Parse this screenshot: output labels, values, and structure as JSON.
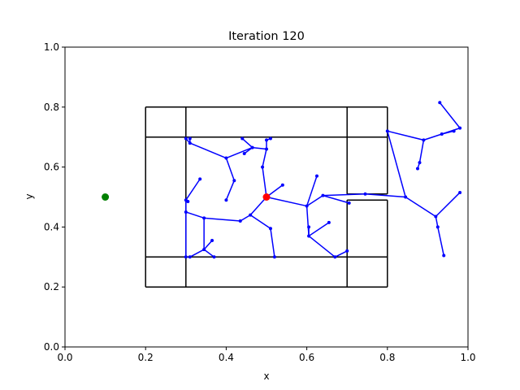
{
  "chart_data": {
    "type": "scatter",
    "title": "Iteration 120",
    "xlabel": "x",
    "ylabel": "y",
    "xlim": [
      0,
      1
    ],
    "ylim": [
      0,
      1
    ],
    "xticks": [
      "0.0",
      "0.2",
      "0.4",
      "0.6",
      "0.8",
      "1.0"
    ],
    "yticks": [
      "0.0",
      "0.2",
      "0.4",
      "0.6",
      "0.8",
      "1.0"
    ],
    "grid": false,
    "colors": {
      "tree": "#0000ff",
      "walls": "#000000",
      "start": "#ff0000",
      "goal": "#008000"
    },
    "start": {
      "x": 0.5,
      "y": 0.5
    },
    "goal": {
      "x": 0.1,
      "y": 0.5
    },
    "walls": [
      [
        [
          0.2,
          0.8
        ],
        [
          0.8,
          0.8
        ]
      ],
      [
        [
          0.2,
          0.8
        ],
        [
          0.2,
          0.2
        ]
      ],
      [
        [
          0.2,
          0.2
        ],
        [
          0.8,
          0.2
        ]
      ],
      [
        [
          0.8,
          0.8
        ],
        [
          0.8,
          0.51
        ]
      ],
      [
        [
          0.8,
          0.49
        ],
        [
          0.8,
          0.2
        ]
      ],
      [
        [
          0.2,
          0.7
        ],
        [
          0.8,
          0.7
        ]
      ],
      [
        [
          0.2,
          0.3
        ],
        [
          0.8,
          0.3
        ]
      ],
      [
        [
          0.3,
          0.8
        ],
        [
          0.3,
          0.2
        ]
      ],
      [
        [
          0.7,
          0.8
        ],
        [
          0.7,
          0.51
        ]
      ],
      [
        [
          0.7,
          0.49
        ],
        [
          0.7,
          0.2
        ]
      ],
      [
        [
          0.7,
          0.51
        ],
        [
          0.8,
          0.51
        ]
      ],
      [
        [
          0.7,
          0.49
        ],
        [
          0.8,
          0.49
        ]
      ]
    ],
    "nodes": [
      [
        0.5,
        0.5
      ],
      [
        0.54,
        0.54
      ],
      [
        0.46,
        0.44
      ],
      [
        0.435,
        0.42
      ],
      [
        0.345,
        0.43
      ],
      [
        0.3,
        0.45
      ],
      [
        0.3,
        0.49
      ],
      [
        0.335,
        0.56
      ],
      [
        0.305,
        0.485
      ],
      [
        0.345,
        0.325
      ],
      [
        0.365,
        0.355
      ],
      [
        0.37,
        0.3
      ],
      [
        0.31,
        0.3
      ],
      [
        0.3,
        0.3
      ],
      [
        0.51,
        0.395
      ],
      [
        0.52,
        0.3
      ],
      [
        0.6,
        0.47
      ],
      [
        0.625,
        0.57
      ],
      [
        0.605,
        0.37
      ],
      [
        0.605,
        0.4
      ],
      [
        0.655,
        0.415
      ],
      [
        0.67,
        0.3
      ],
      [
        0.7,
        0.32
      ],
      [
        0.64,
        0.505
      ],
      [
        0.705,
        0.48
      ],
      [
        0.745,
        0.51
      ],
      [
        0.845,
        0.5
      ],
      [
        0.8,
        0.72
      ],
      [
        0.89,
        0.69
      ],
      [
        0.88,
        0.615
      ],
      [
        0.875,
        0.595
      ],
      [
        0.935,
        0.71
      ],
      [
        0.965,
        0.72
      ],
      [
        0.98,
        0.73
      ],
      [
        0.93,
        0.815
      ],
      [
        0.92,
        0.435
      ],
      [
        0.98,
        0.515
      ],
      [
        0.925,
        0.4
      ],
      [
        0.94,
        0.305
      ],
      [
        0.49,
        0.6
      ],
      [
        0.5,
        0.66
      ],
      [
        0.5,
        0.69
      ],
      [
        0.51,
        0.695
      ],
      [
        0.465,
        0.665
      ],
      [
        0.445,
        0.645
      ],
      [
        0.44,
        0.695
      ],
      [
        0.4,
        0.63
      ],
      [
        0.42,
        0.555
      ],
      [
        0.4,
        0.49
      ],
      [
        0.31,
        0.68
      ],
      [
        0.3,
        0.695
      ],
      [
        0.31,
        0.695
      ]
    ],
    "edges": [
      [
        0,
        1
      ],
      [
        0,
        2
      ],
      [
        2,
        3
      ],
      [
        3,
        4
      ],
      [
        4,
        5
      ],
      [
        5,
        6
      ],
      [
        6,
        7
      ],
      [
        6,
        8
      ],
      [
        4,
        9
      ],
      [
        9,
        10
      ],
      [
        9,
        11
      ],
      [
        9,
        12
      ],
      [
        5,
        13
      ],
      [
        2,
        14
      ],
      [
        14,
        15
      ],
      [
        0,
        16
      ],
      [
        16,
        17
      ],
      [
        16,
        18
      ],
      [
        18,
        19
      ],
      [
        18,
        20
      ],
      [
        18,
        21
      ],
      [
        21,
        22
      ],
      [
        16,
        23
      ],
      [
        23,
        24
      ],
      [
        23,
        25
      ],
      [
        25,
        26
      ],
      [
        26,
        27
      ],
      [
        27,
        28
      ],
      [
        28,
        29
      ],
      [
        29,
        30
      ],
      [
        28,
        31
      ],
      [
        31,
        32
      ],
      [
        31,
        33
      ],
      [
        33,
        34
      ],
      [
        26,
        35
      ],
      [
        35,
        36
      ],
      [
        35,
        37
      ],
      [
        37,
        38
      ],
      [
        0,
        39
      ],
      [
        39,
        40
      ],
      [
        40,
        41
      ],
      [
        41,
        42
      ],
      [
        40,
        43
      ],
      [
        43,
        44
      ],
      [
        43,
        45
      ],
      [
        43,
        46
      ],
      [
        46,
        47
      ],
      [
        47,
        48
      ],
      [
        46,
        49
      ],
      [
        49,
        50
      ],
      [
        49,
        51
      ]
    ]
  }
}
